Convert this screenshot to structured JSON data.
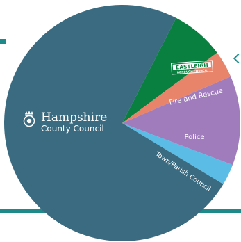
{
  "chart_data": {
    "type": "pie",
    "title": "",
    "slices": [
      {
        "label": "Hampshire County Council",
        "value": 73.9,
        "color": "#3a6b80"
      },
      {
        "label": "EASTLEIGH BOROUGH COUNCIL",
        "value": 7.3,
        "color": "#0a8040"
      },
      {
        "label": "Fire and Rescue",
        "value": 3.7,
        "color": "#e8846a"
      },
      {
        "label": "Police",
        "value": 12.2,
        "color": "#a17cbc"
      },
      {
        "label": "Town/Parish Council",
        "value": 2.9,
        "color": "#5bbde6"
      }
    ]
  },
  "labels": {
    "hcc_name": "Hampshire",
    "hcc_sub": "County Council",
    "eastleigh_line1": "EASTLEIGH",
    "eastleigh_line2": "BOROUGH COUNCIL",
    "fire": "Fire and Rescue",
    "police": "Police",
    "parish": "Town/Parish Council"
  },
  "colors": {
    "accent_line": "#1f8a8a"
  }
}
